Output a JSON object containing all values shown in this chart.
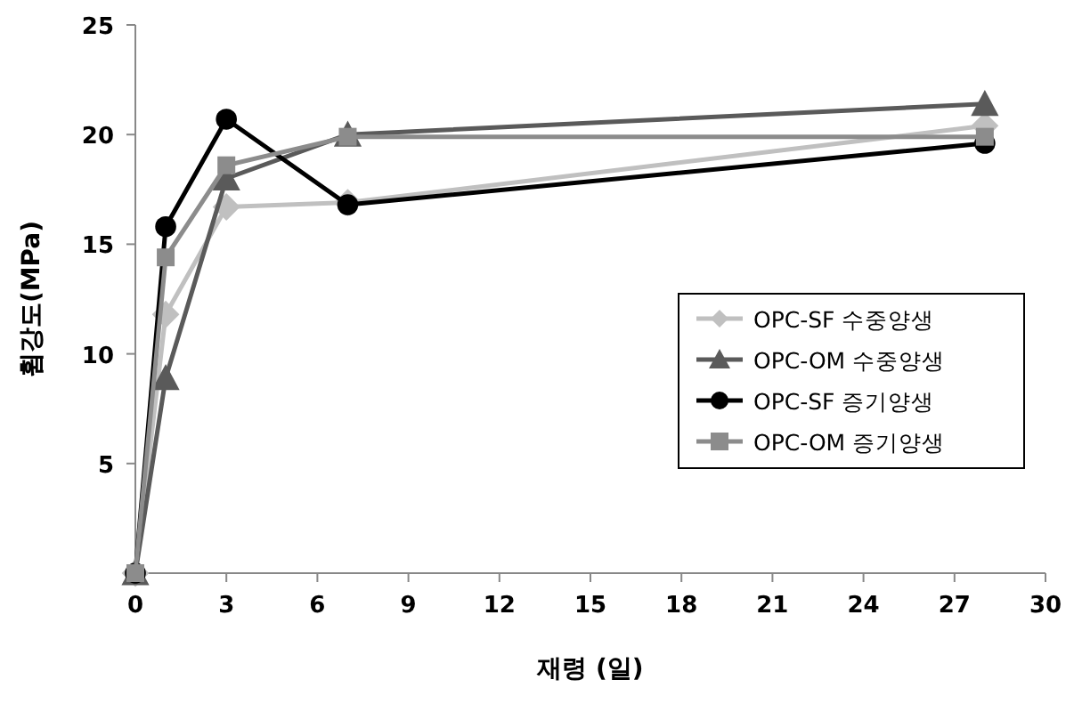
{
  "chart_data": {
    "type": "line",
    "xlabel": "재령 (일)",
    "ylabel": "휨강도(MPa)",
    "x": [
      0,
      1,
      3,
      7,
      28
    ],
    "xlim": [
      0,
      30
    ],
    "xticks": [
      0,
      3,
      6,
      9,
      12,
      15,
      18,
      21,
      24,
      27,
      30
    ],
    "ylim": [
      0,
      25
    ],
    "yticks": [
      5,
      10,
      15,
      20,
      25
    ],
    "legend": "right",
    "grid": false,
    "series": [
      {
        "name": "OPC-SF 수중양생",
        "color": "#c0c0c0",
        "marker": "diamond",
        "values": [
          0,
          11.8,
          16.7,
          16.9,
          20.4
        ]
      },
      {
        "name": "OPC-OM 수중양생",
        "color": "#5a5a5a",
        "marker": "triangle",
        "values": [
          0,
          8.9,
          18,
          20,
          21.4
        ]
      },
      {
        "name": "OPC-SF 증기양생",
        "color": "#000000",
        "marker": "circle",
        "values": [
          0,
          15.8,
          20.7,
          16.8,
          19.6
        ]
      },
      {
        "name": "OPC-OM 증기양생",
        "color": "#8c8c8c",
        "marker": "square",
        "values": [
          0,
          14.4,
          18.6,
          19.9,
          19.9
        ]
      }
    ]
  }
}
